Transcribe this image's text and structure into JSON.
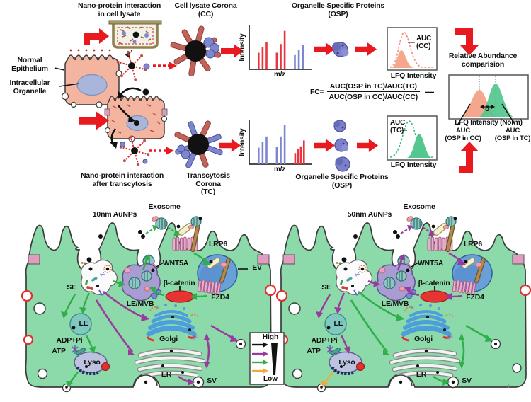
{
  "workflow": {
    "normal_epithelium": "Normal\nEpithelium",
    "intracellular_organelle": "Intracellular\nOrganelle",
    "lysate_interaction_title": "Nano-protein interaction\nin cell lysate",
    "cc_corona_title": "Cell lysate Corona\n(CC)",
    "osp_title_top": "Organelle Specific Proteins\n(OSP)",
    "transcytosis_interaction_title": "Nano-protein interaction\nafter transcytosis",
    "tc_corona_title": "Transcytosis Corona\n(TC)",
    "osp_title_bottom": "Organelle Specific Proteins\n(OSP)",
    "intensity_label": "Intensity",
    "mz_label": "m/z",
    "auc_cc": "AUC\n(CC)",
    "auc_tc": "AUC\n(TC)",
    "lfq_intensity": "LFQ Intensity",
    "fc_prefix": "FC=",
    "fc_numerator": "AUC(OSP in TC)/AUC(TC)",
    "fc_denominator": "AUC(OSP in CC)/AUC(CC)",
    "minus_sign": "—",
    "relative_abundance_title": "Relative Abundance\ncomparision",
    "delta": "δ",
    "lfq_norm": "LFQ Intensity (Norm)",
    "auc_osp_cc": "AUC\n(OSP in CC)",
    "auc_osp_tc": "AUC\n(OSP in TC)"
  },
  "ms_plots": {
    "cc_peaks": [
      {
        "x": 0.1,
        "h": 0.42,
        "c": "r"
      },
      {
        "x": 0.17,
        "h": 0.57,
        "c": "r"
      },
      {
        "x": 0.24,
        "h": 0.68,
        "c": "r"
      },
      {
        "x": 0.42,
        "h": 0.42,
        "c": "r"
      },
      {
        "x": 0.49,
        "h": 0.64,
        "c": "r"
      },
      {
        "x": 0.56,
        "h": 0.97,
        "c": "r"
      },
      {
        "x": 0.74,
        "h": 0.36,
        "c": "b"
      },
      {
        "x": 0.81,
        "h": 0.5,
        "c": "b"
      },
      {
        "x": 0.88,
        "h": 0.62,
        "c": "b"
      }
    ],
    "tc_peaks": [
      {
        "x": 0.1,
        "h": 0.42,
        "c": "b"
      },
      {
        "x": 0.17,
        "h": 0.57,
        "c": "b"
      },
      {
        "x": 0.24,
        "h": 0.7,
        "c": "b"
      },
      {
        "x": 0.42,
        "h": 0.43,
        "c": "b"
      },
      {
        "x": 0.49,
        "h": 0.7,
        "c": "b"
      },
      {
        "x": 0.56,
        "h": 0.99,
        "c": "b"
      },
      {
        "x": 0.745,
        "h": 0.28,
        "c": "r"
      },
      {
        "x": 0.795,
        "h": 0.38,
        "c": "r"
      },
      {
        "x": 0.845,
        "h": 0.45,
        "c": "r"
      },
      {
        "x": 0.9,
        "h": 0.6,
        "c": "r"
      }
    ]
  },
  "cells": {
    "left": {
      "title": "10nm AuNPs"
    },
    "right": {
      "title": "50nm AuNPs"
    },
    "labels": {
      "exosome": "Exosome",
      "lrp6": "LRP6",
      "wnt5a": "WNT5A",
      "ev": "EV",
      "se": "SE",
      "le_mvb": "LE/MVB",
      "beta_catenin": "β-catenin",
      "fzd4": "FZD4",
      "le": "LE",
      "adp_pi": "ADP+Pi",
      "atp": "ATP",
      "lyso": "Lyso",
      "golgi": "Golgi",
      "er": "ER",
      "sv": "SV"
    }
  },
  "legend": {
    "high": "High",
    "low": "Low"
  },
  "icons": {
    "scissors": "✂",
    "back_arrow": "←"
  },
  "colors": {
    "red_arrow": "#e8191f",
    "green_arrow": "#2fae4a",
    "purple_arrow": "#993b9e",
    "orange_arrow": "#f6a83c",
    "black_arrow": "#1a1a1a",
    "cell_green": "#8cd9a9",
    "peak_red": "#e8343c",
    "peak_blue": "#7d87cf",
    "auc_salmon": "#f4a78c",
    "auc_green": "#54c78e"
  }
}
